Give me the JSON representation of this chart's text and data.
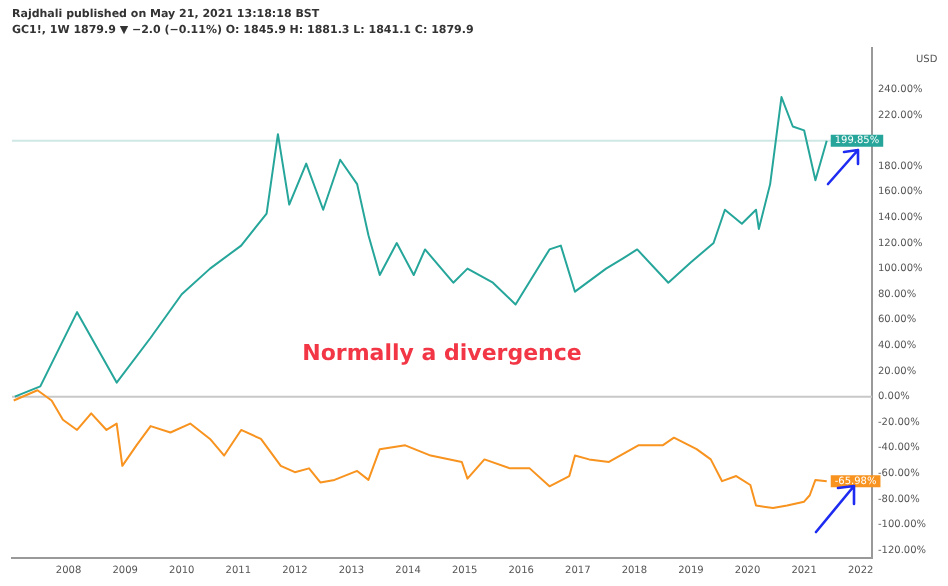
{
  "chart_data": {
    "type": "line",
    "title": "Rajdhali published on May 21, 2021 13:18:18 BST",
    "subtitle": "GC1!, 1W 1879.9 ▼ −2.0 (−0.11%) O: 1845.9 H: 1881.3 L: 1841.1 C: 1879.9",
    "series": [
      {
        "color": "#26a69a",
        "x": [
          2007.05,
          2007.5,
          2008.15,
          2008.85,
          2009.45,
          2010.0,
          2010.5,
          2011.05,
          2011.5,
          2011.7,
          2011.9,
          2012.2,
          2012.5,
          2012.8,
          2013.1,
          2013.3,
          2013.5,
          2013.8,
          2014.1,
          2014.3,
          2014.8,
          2015.05,
          2015.5,
          2015.9,
          2016.5,
          2016.7,
          2016.95,
          2017.5,
          2017.8,
          2018.05,
          2018.6,
          2019.0,
          2019.4,
          2019.6,
          2019.9,
          2020.15,
          2020.2,
          2020.4,
          2020.6,
          2020.8,
          2021.0,
          2021.2,
          2021.4
        ],
        "values": [
          0,
          8,
          66,
          11,
          46,
          80,
          100,
          118,
          143,
          205,
          150,
          182,
          146,
          185,
          166,
          126,
          95,
          120,
          95,
          115,
          89,
          100,
          89,
          72,
          115,
          118,
          82,
          100,
          108,
          115,
          89,
          105,
          120,
          146,
          135,
          146,
          131,
          166,
          234,
          211,
          208,
          169,
          199.85
        ]
      },
      {
        "color": "#f7931e",
        "x": [
          2007.03,
          2007.45,
          2007.7,
          2007.9,
          2008.15,
          2008.4,
          2008.67,
          2008.85,
          2008.95,
          2009.2,
          2009.45,
          2009.8,
          2010.15,
          2010.5,
          2010.75,
          2011.05,
          2011.4,
          2011.75,
          2012.0,
          2012.25,
          2012.45,
          2012.7,
          2013.1,
          2013.3,
          2013.5,
          2013.95,
          2014.4,
          2014.95,
          2015.05,
          2015.35,
          2015.8,
          2016.15,
          2016.5,
          2016.85,
          2016.95,
          2017.2,
          2017.55,
          2018.07,
          2018.5,
          2018.7,
          2019.1,
          2019.35,
          2019.55,
          2019.8,
          2020.05,
          2020.15,
          2020.45,
          2020.7,
          2021.0,
          2021.1,
          2021.2,
          2021.4
        ],
        "values": [
          -3,
          5,
          -3,
          -18,
          -26,
          -13,
          -26,
          -21,
          -54,
          -38,
          -23,
          -28,
          -21,
          -33,
          -46,
          -26,
          -33,
          -54,
          -59,
          -56,
          -67,
          -65,
          -58,
          -65,
          -41,
          -38,
          -46,
          -51,
          -64,
          -49,
          -56,
          -56,
          -70,
          -62,
          -46,
          -49,
          -51,
          -38,
          -38,
          -32,
          -41,
          -49,
          -66,
          -62,
          -69,
          -85,
          -87,
          -85,
          -82,
          -77,
          -65,
          -65.98
        ]
      }
    ],
    "xlim": [
      2007.0,
      2022.2
    ],
    "xticks": [
      2008,
      2009,
      2010,
      2011,
      2012,
      2013,
      2014,
      2015,
      2016,
      2017,
      2018,
      2019,
      2020,
      2021,
      2022
    ],
    "ylim": [
      -126,
      272
    ],
    "yticks": [
      {
        "value": -120,
        "label": "-120.00%"
      },
      {
        "value": -100,
        "label": "-100.00%"
      },
      {
        "value": -80,
        "label": "-80.00%"
      },
      {
        "value": -60,
        "label": "-60.00%"
      },
      {
        "value": -40,
        "label": "-40.00%"
      },
      {
        "value": -20,
        "label": "-20.00%"
      },
      {
        "value": 0,
        "label": "0.00%"
      },
      {
        "value": 20,
        "label": "20.00%"
      },
      {
        "value": 40,
        "label": "40.00%"
      },
      {
        "value": 60,
        "label": "60.00%"
      },
      {
        "value": 80,
        "label": "80.00%"
      },
      {
        "value": 100,
        "label": "100.00%"
      },
      {
        "value": 120,
        "label": "120.00%"
      },
      {
        "value": 140,
        "label": "140.00%"
      },
      {
        "value": 160,
        "label": "160.00%"
      },
      {
        "value": 180,
        "label": "180.00%"
      },
      {
        "value": 220,
        "label": "220.00%"
      },
      {
        "value": 240,
        "label": "240.00%"
      }
    ],
    "ref_lines": [
      {
        "axis": "y",
        "value": 0,
        "color": "#c8c8c8"
      },
      {
        "axis": "y",
        "value": 199.85,
        "color": "#cfe8e5"
      }
    ],
    "annotations": [
      "Normally a divergence",
      "USD",
      {
        "text": "199.85%",
        "x": 2021.4,
        "y": 199.85
      },
      {
        "text": "-65.98%",
        "x": 2021.4,
        "y": -65.98
      }
    ],
    "grid": false,
    "legend": false,
    "marker": "none",
    "line_style": "solid"
  }
}
